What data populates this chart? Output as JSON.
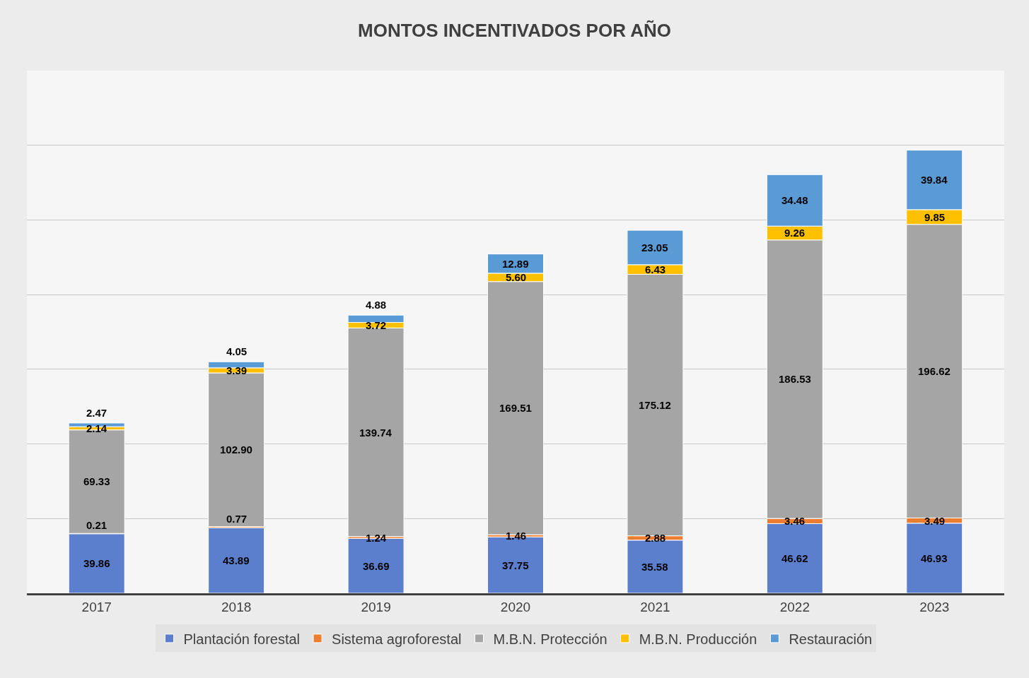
{
  "chart_data": {
    "type": "bar",
    "title": "MONTOS INCENTIVADOS POR AÑO",
    "stacked": true,
    "grid": "y",
    "legend": "bottom",
    "categories": [
      "2017",
      "2018",
      "2019",
      "2020",
      "2021",
      "2022",
      "2023"
    ],
    "ylim": [
      0,
      350
    ],
    "yticks": [
      {
        "value": 0,
        "label": null
      },
      {
        "value": 50,
        "label": null
      },
      {
        "value": 100,
        "label": null
      },
      {
        "value": 150,
        "label": null
      },
      {
        "value": 200,
        "label": null
      },
      {
        "value": 250,
        "label": null
      },
      {
        "value": 300,
        "label": null
      },
      {
        "value": 350,
        "label": null
      }
    ],
    "tick_labels": "x",
    "series": [
      {
        "name": "Plantación forestal",
        "color": "#5b7fcc",
        "values": [
          39.86,
          43.89,
          36.69,
          37.75,
          35.58,
          46.62,
          46.93
        ],
        "value_labels": [
          "39.86",
          "43.89",
          "36.69",
          "37.75",
          "35.58",
          "46.62",
          "46.93"
        ]
      },
      {
        "name": "Sistema agroforestal",
        "color": "#ed7d31",
        "values": [
          0.21,
          0.77,
          1.24,
          1.46,
          2.88,
          3.46,
          3.49
        ],
        "value_labels": [
          "0.21",
          "0.77",
          "1.24",
          "1.46",
          "2.88",
          "3.46",
          "3.49"
        ]
      },
      {
        "name": "M.B.N. Protección",
        "color": "#a5a5a5",
        "values": [
          69.33,
          102.9,
          139.74,
          169.51,
          175.12,
          186.53,
          196.62
        ],
        "value_labels": [
          "69.33",
          "102.90",
          "139.74",
          "169.51",
          "175.12",
          "186.53",
          "196.62"
        ]
      },
      {
        "name": "M.B.N. Producción",
        "color": "#ffc000",
        "values": [
          2.14,
          3.39,
          3.72,
          5.6,
          6.43,
          9.26,
          9.85
        ],
        "value_labels": [
          "2.14",
          "3.39",
          "3.72",
          "5.60",
          "6.43",
          "9.26",
          "9.85"
        ]
      },
      {
        "name": "Restauración",
        "color": "#5b9bd5",
        "values": [
          2.47,
          4.05,
          4.88,
          12.89,
          23.05,
          34.48,
          39.84
        ],
        "value_labels": [
          "2.47",
          "4.05",
          "4.88",
          "12.89",
          "23.05",
          "34.48",
          "39.84"
        ]
      }
    ]
  }
}
